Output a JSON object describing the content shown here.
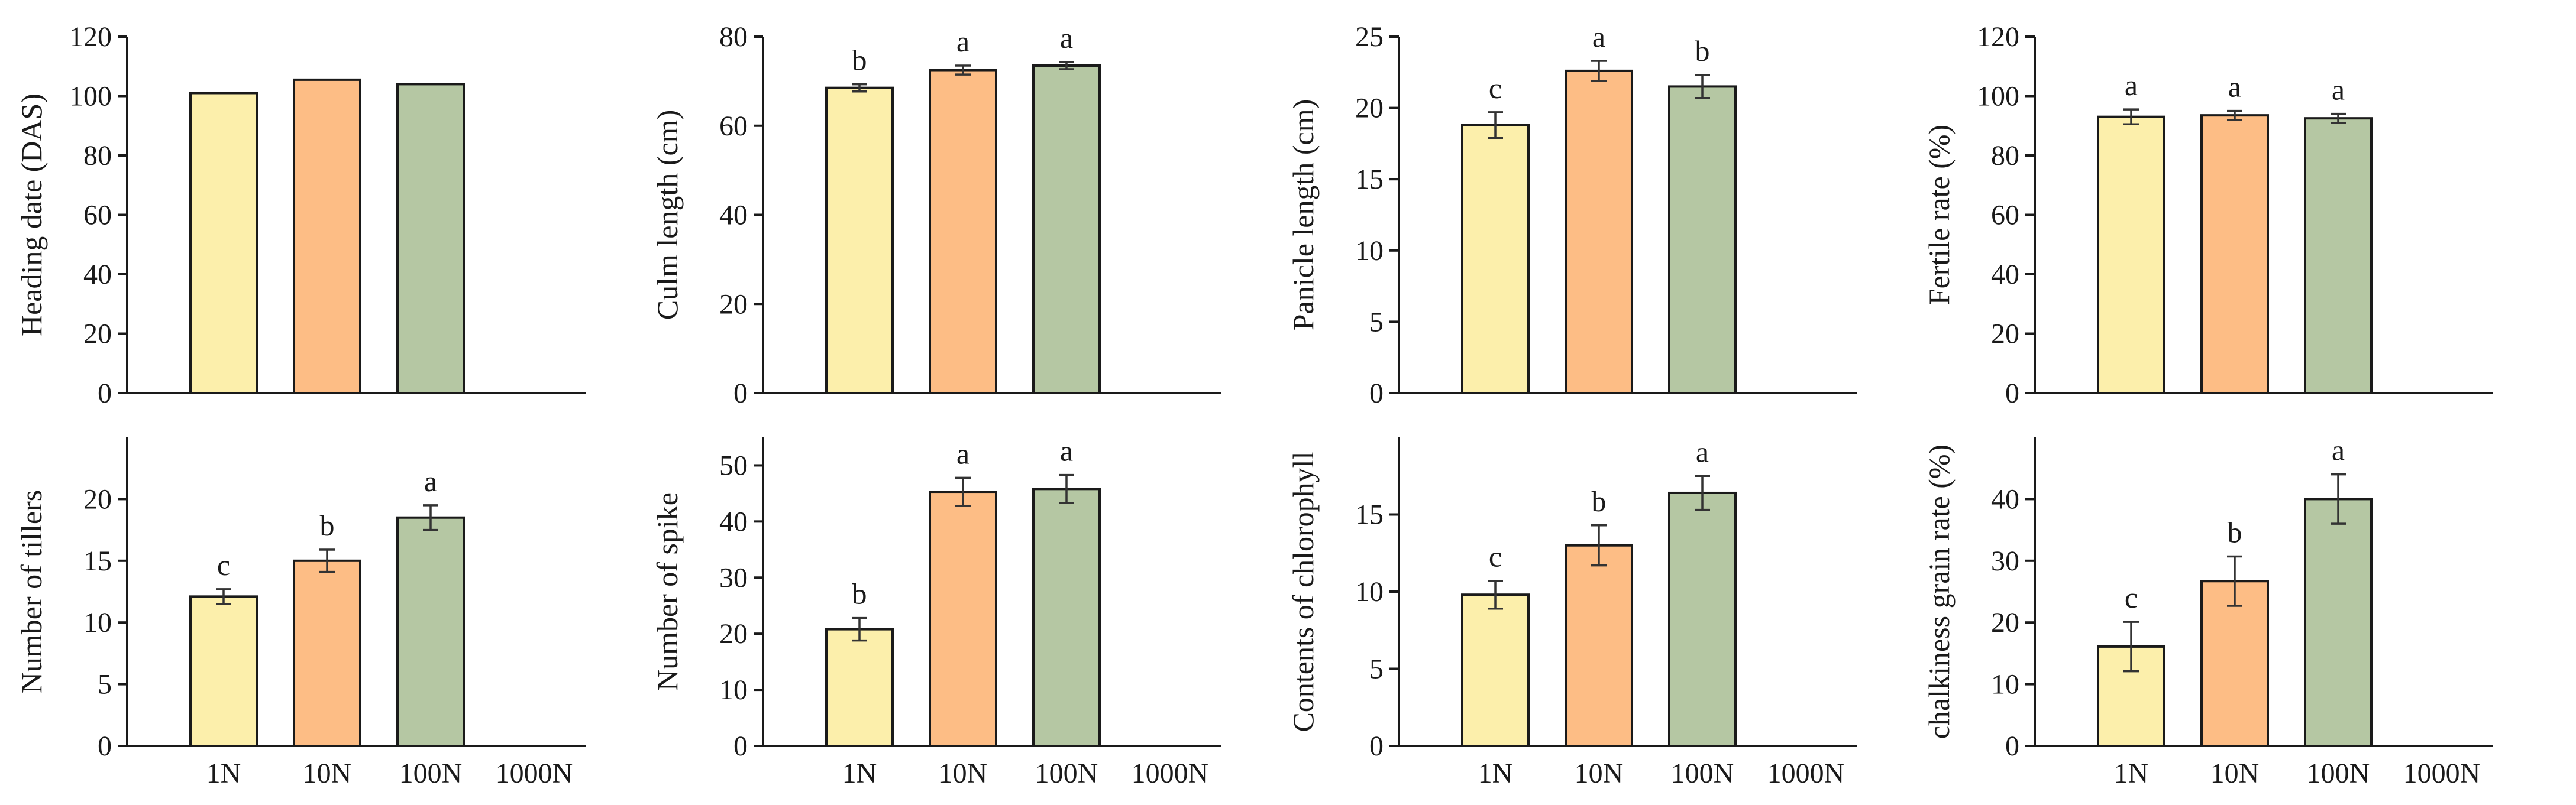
{
  "colors": {
    "1N": "#fcefab",
    "10N": "#fdbd85",
    "100N": "#b5c7a3",
    "axis": "#1a1a1a"
  },
  "chart_data": [
    {
      "type": "bar",
      "panel": "top-1",
      "ylabel": "Heading date (DAS)",
      "ylim": [
        0,
        120
      ],
      "yticks": [
        0,
        20,
        40,
        60,
        80,
        100,
        120
      ],
      "categories": [
        "1N",
        "10N",
        "100N",
        "1000N"
      ],
      "show_xticklabels": false,
      "values": [
        101,
        105.5,
        104,
        null
      ],
      "errors": [
        0,
        0,
        0,
        null
      ],
      "letters": [
        "",
        "",
        "",
        ""
      ]
    },
    {
      "type": "bar",
      "panel": "top-2",
      "ylabel": "Culm length (cm)",
      "ylim": [
        0,
        80
      ],
      "yticks": [
        0,
        20,
        40,
        60,
        80
      ],
      "categories": [
        "1N",
        "10N",
        "100N",
        "1000N"
      ],
      "show_xticklabels": false,
      "values": [
        68.5,
        72.5,
        73.5,
        null
      ],
      "errors": [
        0.8,
        1.0,
        0.8,
        null
      ],
      "letters": [
        "b",
        "a",
        "a",
        ""
      ]
    },
    {
      "type": "bar",
      "panel": "top-3",
      "ylabel": "Panicle length (cm)",
      "ylim": [
        0,
        25
      ],
      "yticks": [
        0,
        5,
        10,
        15,
        20,
        25
      ],
      "categories": [
        "1N",
        "10N",
        "100N",
        "1000N"
      ],
      "show_xticklabels": false,
      "values": [
        18.8,
        22.6,
        21.5,
        null
      ],
      "errors": [
        0.9,
        0.7,
        0.8,
        null
      ],
      "letters": [
        "c",
        "a",
        "b",
        ""
      ]
    },
    {
      "type": "bar",
      "panel": "top-4",
      "ylabel": "Fertile rate (%)",
      "ylim": [
        0,
        120
      ],
      "yticks": [
        0,
        20,
        40,
        60,
        80,
        100,
        120
      ],
      "categories": [
        "1N",
        "10N",
        "100N",
        "1000N"
      ],
      "show_xticklabels": false,
      "values": [
        93,
        93.5,
        92.5,
        null
      ],
      "errors": [
        2.5,
        1.5,
        1.5,
        null
      ],
      "letters": [
        "a",
        "a",
        "a",
        ""
      ]
    },
    {
      "type": "bar",
      "panel": "bottom-1",
      "ylabel": "Number of tillers",
      "ylim": [
        0,
        25
      ],
      "yticks": [
        0,
        5,
        10,
        15,
        20
      ],
      "categories": [
        "1N",
        "10N",
        "100N",
        "1000N"
      ],
      "show_xticklabels": true,
      "values": [
        12.1,
        15.0,
        18.5,
        null
      ],
      "errors": [
        0.6,
        0.9,
        1.0,
        null
      ],
      "letters": [
        "c",
        "b",
        "a",
        ""
      ]
    },
    {
      "type": "bar",
      "panel": "bottom-2",
      "ylabel": "Number of spike",
      "ylim": [
        0,
        55
      ],
      "yticks": [
        0,
        10,
        20,
        30,
        40,
        50
      ],
      "categories": [
        "1N",
        "10N",
        "100N",
        "1000N"
      ],
      "show_xticklabels": true,
      "values": [
        20.8,
        45.3,
        45.8,
        null
      ],
      "errors": [
        2.0,
        2.5,
        2.5,
        null
      ],
      "letters": [
        "b",
        "a",
        "a",
        ""
      ]
    },
    {
      "type": "bar",
      "panel": "bottom-3",
      "ylabel": "Contents of chlorophyll",
      "ylim": [
        0,
        20
      ],
      "yticks": [
        0,
        5,
        10,
        15
      ],
      "categories": [
        "1N",
        "10N",
        "100N",
        "1000N"
      ],
      "show_xticklabels": true,
      "values": [
        9.8,
        13.0,
        16.4,
        null
      ],
      "errors": [
        0.9,
        1.3,
        1.1,
        null
      ],
      "letters": [
        "c",
        "b",
        "a",
        ""
      ]
    },
    {
      "type": "bar",
      "panel": "bottom-4",
      "ylabel": "chalkiness grain rate (%)",
      "ylim": [
        0,
        50
      ],
      "yticks": [
        0,
        10,
        20,
        30,
        40
      ],
      "categories": [
        "1N",
        "10N",
        "100N",
        "1000N"
      ],
      "show_xticklabels": true,
      "values": [
        16.1,
        26.7,
        40.0,
        null
      ],
      "errors": [
        4.0,
        4.0,
        4.0,
        null
      ],
      "letters": [
        "c",
        "b",
        "a",
        ""
      ]
    }
  ]
}
